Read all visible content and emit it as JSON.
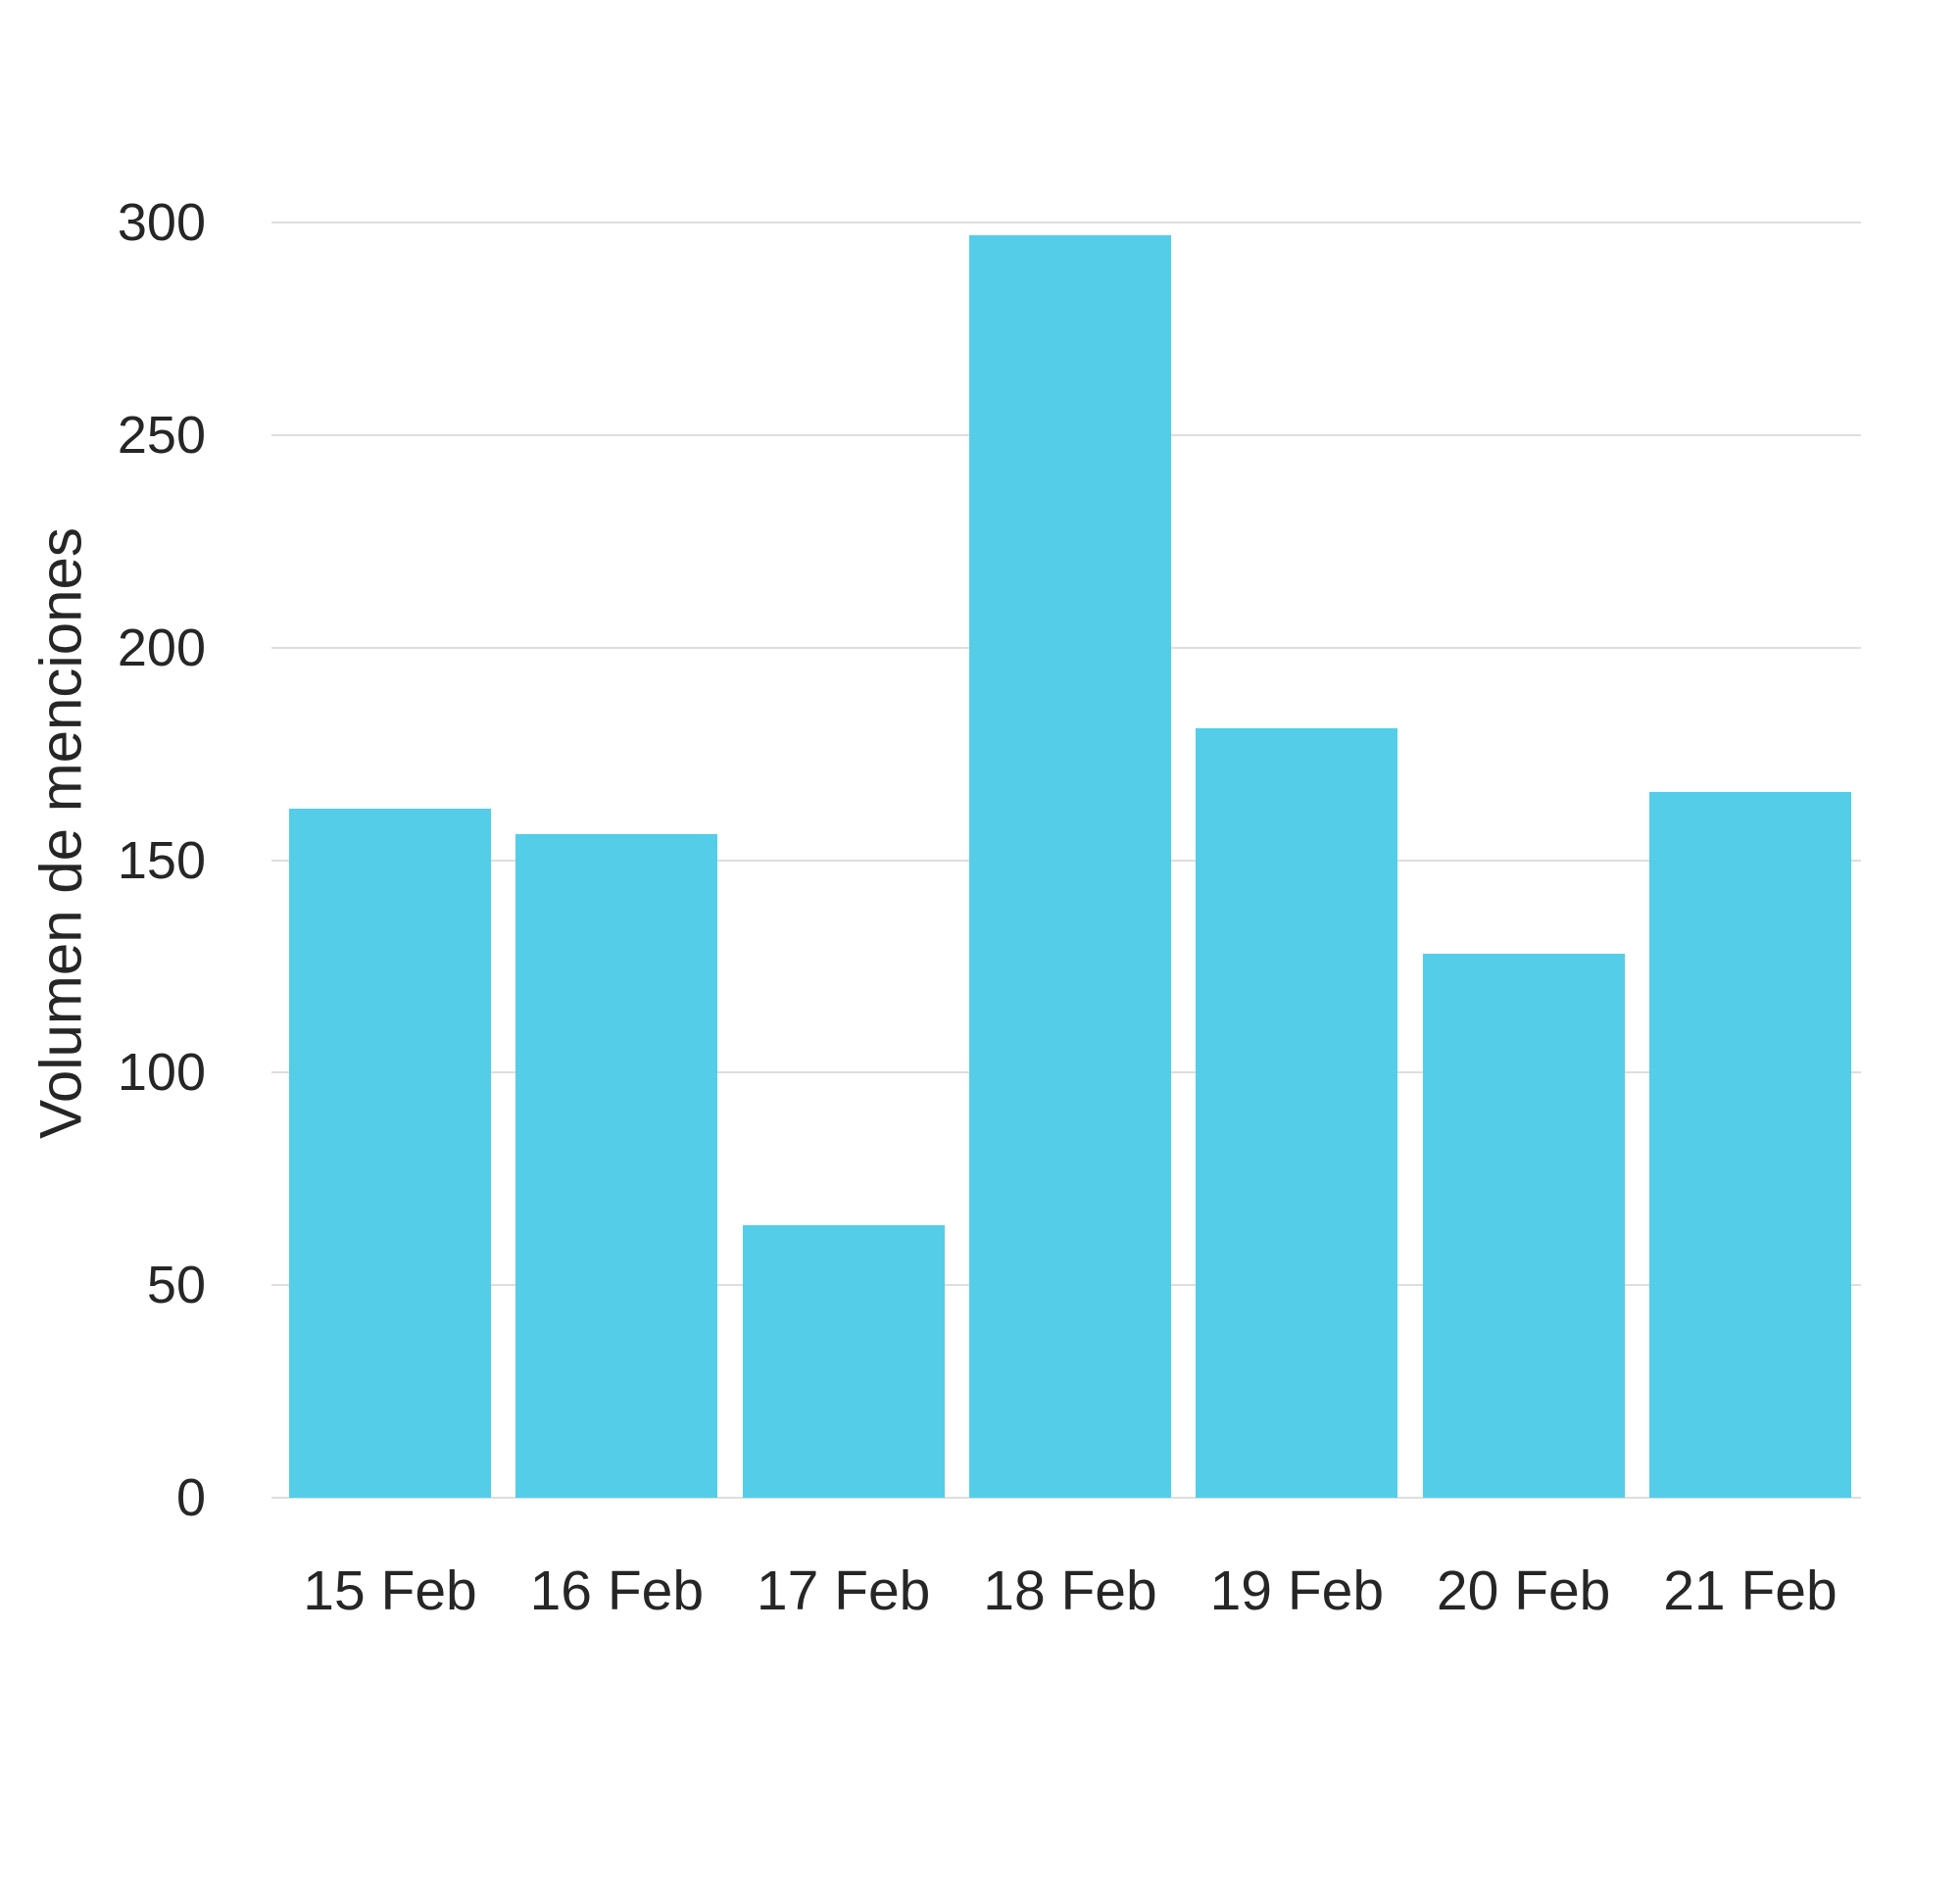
{
  "chart_data": {
    "type": "bar",
    "title": "",
    "xlabel": "",
    "ylabel": "Volumen de menciones",
    "categories": [
      "15 Feb",
      "16 Feb",
      "17 Feb",
      "18 Feb",
      "19 Feb",
      "20 Feb",
      "21 Feb"
    ],
    "values": [
      162,
      156,
      64,
      297,
      181,
      128,
      166
    ],
    "yticks": [
      0,
      50,
      100,
      150,
      200,
      250,
      300
    ],
    "ylim": [
      0,
      300
    ],
    "grid": true,
    "legend_position": "none",
    "colors": {
      "bar": "#54cde9",
      "gridline": "#dedede",
      "text": "#262626",
      "background": "#ffffff"
    }
  }
}
